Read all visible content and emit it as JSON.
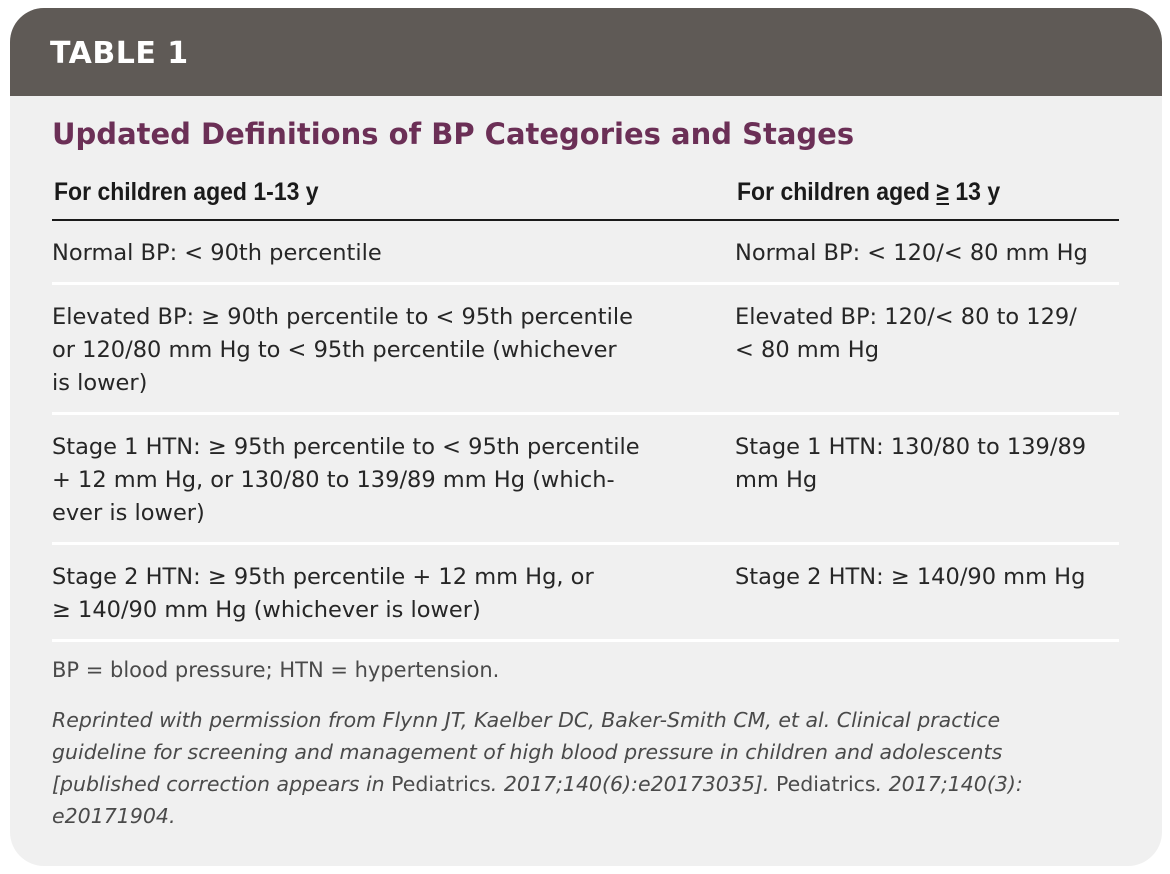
{
  "header": {
    "label": "TABLE 1"
  },
  "title": "Updated Definitions of BP Categories and Stages",
  "columns": {
    "left": "For children aged 1-13 y",
    "right_prefix": "For children aged ",
    "right_symbol": "≥",
    "right_suffix": " 13 y"
  },
  "rows": [
    {
      "left": [
        "Normal BP: < 90th percentile"
      ],
      "right": [
        "Normal BP: < 120/< 80 mm Hg"
      ]
    },
    {
      "left": [
        "Elevated BP: ≥ 90th percentile to < 95th percentile",
        "or 120/80 mm Hg to < 95th percentile (whichever",
        "is lower)"
      ],
      "right": [
        "Elevated BP: 120/< 80 to 129/",
        "< 80 mm Hg"
      ]
    },
    {
      "left": [
        "Stage 1 HTN: ≥ 95th percentile to < 95th percentile",
        "+ 12 mm Hg, or 130/80 to 139/89 mm Hg (which-",
        "ever is lower)"
      ],
      "right": [
        "Stage 1 HTN: 130/80 to 139/89",
        "mm Hg"
      ]
    },
    {
      "left": [
        "Stage 2 HTN: ≥ 95th percentile + 12 mm Hg, or",
        "≥ 140/90 mm Hg (whichever is lower)"
      ],
      "right": [
        "Stage 2 HTN: ≥ 140/90 mm Hg"
      ]
    }
  ],
  "footnote": "BP = blood pressure; HTN = hypertension.",
  "citation": {
    "line1": "Reprinted with permission from Flynn JT, Kaelber DC, Baker-Smith CM, et al. Clinical practice",
    "line2": "guideline for screening and management of high blood pressure in children and adolescents",
    "line3_a": "[published correction appears in ",
    "line3_b": "Pediatrics",
    "line3_c": ". 2017;140(6):e20173035]. ",
    "line3_d": "Pediatrics",
    "line3_e": ". 2017;140(3):",
    "line4": "e20171904."
  },
  "colors": {
    "header_band": "#5f5a56",
    "title": "#6b2f56",
    "card_background": "#f0f0f0"
  }
}
